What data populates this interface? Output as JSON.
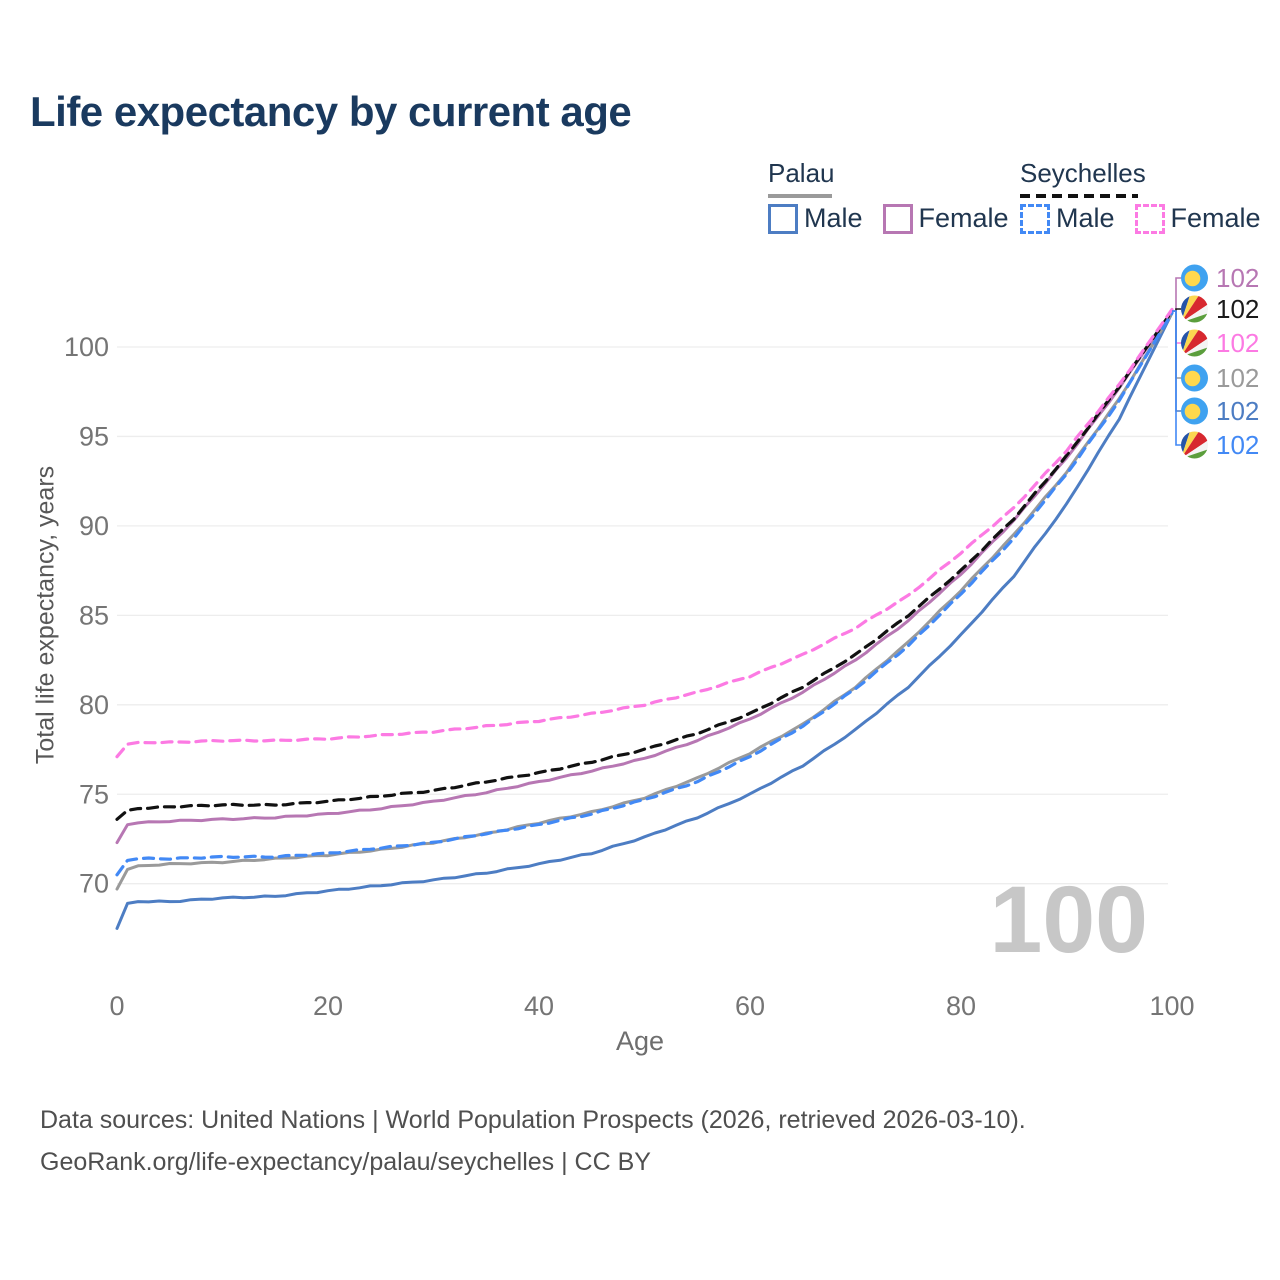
{
  "title": "Life expectancy by current age",
  "legend": {
    "groups": [
      {
        "name": "Palau",
        "line_style": "solid",
        "underline_color": "#9a9a9a",
        "items": [
          {
            "label": "Male",
            "color": "#4d7dc3"
          },
          {
            "label": "Female",
            "color": "#b777b3"
          }
        ]
      },
      {
        "name": "Seychelles",
        "line_style": "dashed",
        "underline_color": "#111111",
        "items": [
          {
            "label": "Male",
            "color": "#4289f5"
          },
          {
            "label": "Female",
            "color": "#fc7ae3"
          }
        ]
      }
    ]
  },
  "watermark": "100",
  "endpoint_labels": [
    {
      "flag": "palau",
      "value": "102",
      "color": "#b777b3"
    },
    {
      "flag": "seychelles",
      "value": "102",
      "color": "#1a1a1a"
    },
    {
      "flag": "seychelles",
      "value": "102",
      "color": "#fc7ae3"
    },
    {
      "flag": "palau",
      "value": "102",
      "color": "#9a9a9a"
    },
    {
      "flag": "palau",
      "value": "102",
      "color": "#4d7dc3"
    },
    {
      "flag": "seychelles",
      "value": "102",
      "color": "#4289f5"
    }
  ],
  "chart_data": {
    "type": "line",
    "title": "Life expectancy by current age",
    "xlabel": "Age",
    "ylabel": "Total life expectancy, years",
    "xlim": [
      0,
      100
    ],
    "ylim": [
      66,
      103.5
    ],
    "x_ticks": [
      0,
      20,
      40,
      60,
      80,
      100
    ],
    "y_ticks": [
      70,
      75,
      80,
      85,
      90,
      95,
      100
    ],
    "grid": true,
    "legend_position": "top-right",
    "x": [
      0,
      1,
      2,
      5,
      10,
      15,
      20,
      25,
      30,
      35,
      40,
      45,
      50,
      55,
      60,
      65,
      70,
      75,
      80,
      85,
      90,
      95,
      100
    ],
    "series": [
      {
        "name": "Palau Male",
        "country": "Palau",
        "sex": "Male",
        "color": "#4d7dc3",
        "dash": "solid",
        "values": [
          67.5,
          68.9,
          69.0,
          69.0,
          69.2,
          69.3,
          69.6,
          69.9,
          70.2,
          70.6,
          71.1,
          71.7,
          72.6,
          73.7,
          75.0,
          76.6,
          78.6,
          81.0,
          83.9,
          87.2,
          91.2,
          96.0,
          101.9
        ]
      },
      {
        "name": "Palau Female",
        "country": "Palau",
        "sex": "Female",
        "color": "#b777b3",
        "dash": "solid",
        "values": [
          72.3,
          73.3,
          73.4,
          73.5,
          73.6,
          73.7,
          73.9,
          74.2,
          74.6,
          75.1,
          75.7,
          76.3,
          77.0,
          78.0,
          79.2,
          80.7,
          82.5,
          84.7,
          87.3,
          90.3,
          93.8,
          97.7,
          102.0
        ]
      },
      {
        "name": "Palau Total",
        "country": "Palau",
        "sex": "Total",
        "color": "#9a9a9a",
        "dash": "solid",
        "values": [
          69.7,
          70.8,
          71.0,
          71.1,
          71.2,
          71.4,
          71.6,
          71.9,
          72.3,
          72.8,
          73.4,
          74.0,
          74.8,
          75.9,
          77.3,
          78.9,
          81.0,
          83.5,
          86.4,
          89.5,
          93.0,
          97.1,
          101.9
        ]
      },
      {
        "name": "Seychelles Total",
        "country": "Seychelles",
        "sex": "Total",
        "color": "#111111",
        "dash": "dashed",
        "values": [
          73.6,
          74.1,
          74.2,
          74.3,
          74.4,
          74.4,
          74.6,
          74.9,
          75.2,
          75.7,
          76.2,
          76.8,
          77.5,
          78.4,
          79.5,
          81.0,
          82.8,
          85.0,
          87.5,
          90.4,
          93.9,
          97.8,
          102.0
        ]
      },
      {
        "name": "Seychelles Male",
        "country": "Seychelles",
        "sex": "Male",
        "color": "#4289f5",
        "dash": "dashed",
        "values": [
          70.5,
          71.3,
          71.4,
          71.4,
          71.5,
          71.5,
          71.7,
          72.0,
          72.3,
          72.8,
          73.3,
          73.9,
          74.7,
          75.7,
          77.1,
          78.8,
          80.9,
          83.3,
          86.2,
          89.3,
          92.9,
          97.0,
          101.9
        ]
      },
      {
        "name": "Seychelles Female",
        "country": "Seychelles",
        "sex": "Female",
        "color": "#fc7ae3",
        "dash": "dashed",
        "values": [
          77.1,
          77.8,
          77.9,
          77.9,
          78.0,
          78.0,
          78.1,
          78.3,
          78.5,
          78.8,
          79.1,
          79.5,
          80.0,
          80.7,
          81.6,
          82.8,
          84.3,
          86.1,
          88.5,
          91.0,
          94.2,
          97.9,
          102.1
        ]
      }
    ]
  },
  "footer": {
    "line1": "Data sources: United Nations | World Population Prospects (2026, retrieved 2026-03-10).",
    "line2": "GeoRank.org/life-expectancy/palau/seychelles | CC BY"
  }
}
